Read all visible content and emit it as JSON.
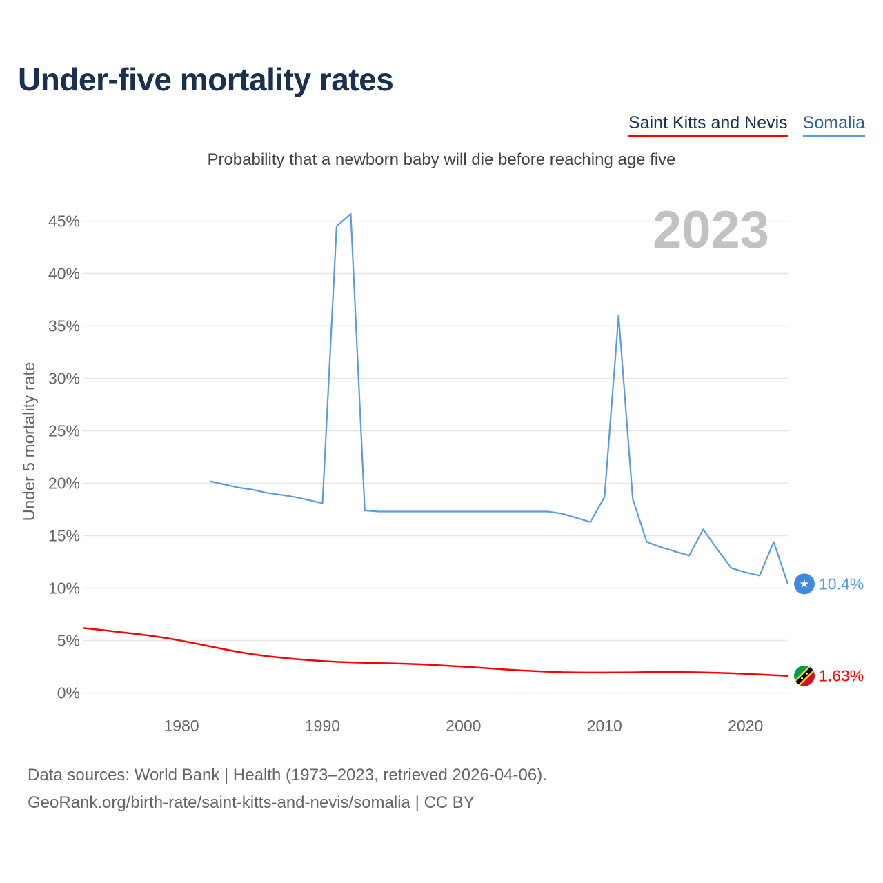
{
  "title": "Under-five mortality rates",
  "legend": [
    {
      "name": "Saint Kitts and Nevis",
      "color": "#ff0000"
    },
    {
      "name": "Somalia",
      "color": "#5a9be0"
    }
  ],
  "subtitle": "Probability that a newborn baby will die before reaching age five",
  "current_year": "2023",
  "footer": {
    "line1": "Data sources: World Bank | Health (1973–2023, retrieved 2026-04-06).",
    "line2": "GeoRank.org/birth-rate/saint-kitts-and-nevis/somalia | CC BY"
  },
  "chart_data": {
    "type": "line",
    "title": "Under-five mortality rates",
    "subtitle": "Probability that a newborn baby will die before reaching age five",
    "xlabel": "",
    "ylabel": "Under 5 mortality rate",
    "xlim": [
      1973,
      2023
    ],
    "ylim": [
      0,
      45
    ],
    "x_ticks": [
      1980,
      1990,
      2000,
      2010,
      2020
    ],
    "y_ticks": [
      0,
      5,
      10,
      15,
      20,
      25,
      30,
      35,
      40,
      45
    ],
    "y_tick_labels": [
      "0%",
      "5%",
      "10%",
      "15%",
      "20%",
      "25%",
      "30%",
      "35%",
      "40%",
      "45%"
    ],
    "grid": true,
    "series": [
      {
        "name": "Saint Kitts and Nevis",
        "color": "#ff0000",
        "end_label": "1.63%",
        "end_icon": "saint-kitts-and-nevis-flag-icon",
        "x": [
          1973,
          1974,
          1975,
          1976,
          1977,
          1978,
          1979,
          1980,
          1981,
          1982,
          1983,
          1984,
          1985,
          1986,
          1987,
          1988,
          1989,
          1990,
          1991,
          1992,
          1993,
          1994,
          1995,
          1996,
          1997,
          1998,
          1999,
          2000,
          2001,
          2002,
          2003,
          2004,
          2005,
          2006,
          2007,
          2008,
          2009,
          2010,
          2011,
          2012,
          2013,
          2014,
          2015,
          2016,
          2017,
          2018,
          2019,
          2020,
          2021,
          2022,
          2023
        ],
        "values": [
          6.2,
          6.05,
          5.9,
          5.75,
          5.6,
          5.42,
          5.22,
          4.98,
          4.72,
          4.45,
          4.18,
          3.92,
          3.7,
          3.52,
          3.37,
          3.24,
          3.13,
          3.04,
          2.97,
          2.92,
          2.88,
          2.85,
          2.82,
          2.78,
          2.73,
          2.66,
          2.58,
          2.5,
          2.42,
          2.33,
          2.24,
          2.16,
          2.09,
          2.03,
          1.98,
          1.96,
          1.95,
          1.95,
          1.96,
          1.97,
          1.99,
          2.01,
          2.0,
          1.98,
          1.96,
          1.92,
          1.88,
          1.83,
          1.77,
          1.7,
          1.63
        ]
      },
      {
        "name": "Somalia",
        "color": "#5a9be0",
        "end_label": "10.4%",
        "end_icon": "somalia-flag-icon",
        "x": [
          1982,
          1983,
          1984,
          1985,
          1986,
          1987,
          1988,
          1989,
          1990,
          1991,
          1992,
          1993,
          1994,
          1995,
          1996,
          1997,
          1998,
          1999,
          2000,
          2001,
          2002,
          2003,
          2004,
          2005,
          2006,
          2007,
          2008,
          2009,
          2010,
          2011,
          2012,
          2013,
          2014,
          2015,
          2016,
          2017,
          2018,
          2019,
          2020,
          2021,
          2022,
          2023
        ],
        "values": [
          20.2,
          19.9,
          19.6,
          19.4,
          19.1,
          18.9,
          18.7,
          18.4,
          18.1,
          44.5,
          45.7,
          17.4,
          17.3,
          17.3,
          17.3,
          17.3,
          17.3,
          17.3,
          17.3,
          17.3,
          17.3,
          17.3,
          17.3,
          17.3,
          17.3,
          17.1,
          16.7,
          16.3,
          18.7,
          36.0,
          18.5,
          14.4,
          13.9,
          13.5,
          13.1,
          15.6,
          13.7,
          11.9,
          11.5,
          11.2,
          14.4,
          10.4
        ]
      }
    ]
  }
}
